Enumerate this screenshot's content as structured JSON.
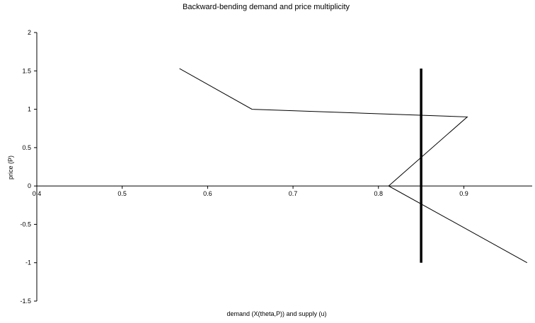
{
  "chart_data": {
    "type": "line",
    "title": "Backward-bending demand and price multiplicity",
    "xlabel": "demand (X(theta,P)) and supply (u)",
    "ylabel": "price (P)",
    "xlim": [
      0.4,
      0.98
    ],
    "ylim": [
      -1.5,
      2
    ],
    "x_ticks": [
      "0.4",
      "0.5",
      "0.6",
      "0.7",
      "0.8",
      "0.9"
    ],
    "x_tick_values": [
      0.4,
      0.5,
      0.6,
      0.7,
      0.8,
      0.9
    ],
    "y_ticks": [
      "2",
      "1.5",
      "1",
      "0.5",
      "0",
      "-0.5",
      "-1",
      "-1.5"
    ],
    "y_tick_values": [
      2,
      1.5,
      1,
      0.5,
      0,
      -0.5,
      -1,
      -1.5
    ],
    "grid": false,
    "legend": "none",
    "series": [
      {
        "x": [
          0.567,
          0.652,
          0.904,
          0.812,
          0.974
        ],
        "y": [
          1.53,
          1.0,
          0.9,
          0.0,
          -1.0
        ],
        "color": "#000000"
      },
      {
        "x": [
          0.85,
          0.85
        ],
        "y": [
          1.53,
          -1.0
        ],
        "color": "#000000"
      }
    ]
  }
}
